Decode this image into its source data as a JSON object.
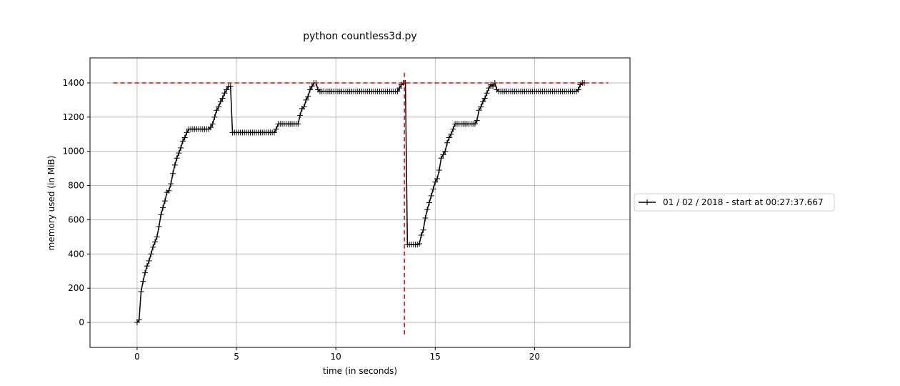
{
  "chart_data": {
    "type": "line",
    "title": "python countless3d.py",
    "xlabel": "time (in seconds)",
    "ylabel": "memory used (in MiB)",
    "xlim": [
      -2.37,
      24.8
    ],
    "ylim": [
      -146,
      1546
    ],
    "xticks": [
      0,
      5,
      10,
      15,
      20
    ],
    "yticks": [
      0,
      200,
      400,
      600,
      800,
      1000,
      1200,
      1400
    ],
    "grid": true,
    "legend": "right outside",
    "x": [
      0,
      0.1,
      0.2,
      0.3,
      0.4,
      0.5,
      0.6,
      0.7,
      0.8,
      0.9,
      1,
      1.1,
      1.2,
      1.3,
      1.4,
      1.5,
      1.6,
      1.7,
      1.8,
      1.9,
      2,
      2.1,
      2.2,
      2.3,
      2.4,
      2.5,
      2.6,
      2.7,
      2.8,
      2.9,
      3,
      3.1,
      3.2,
      3.3,
      3.4,
      3.5,
      3.6,
      3.7,
      3.8,
      3.9,
      4,
      4.1,
      4.2,
      4.3,
      4.4,
      4.5,
      4.6,
      4.7,
      4.8,
      4.9,
      5,
      5.1,
      5.2,
      5.3,
      5.4,
      5.5,
      5.6,
      5.7,
      5.8,
      5.9,
      6,
      6.1,
      6.2,
      6.3,
      6.4,
      6.5,
      6.6,
      6.7,
      6.8,
      6.9,
      7,
      7.1,
      7.2,
      7.3,
      7.4,
      7.5,
      7.6,
      7.7,
      7.8,
      7.9,
      8,
      8.1,
      8.2,
      8.3,
      8.4,
      8.5,
      8.6,
      8.7,
      8.8,
      8.9,
      9,
      9.1,
      9.2,
      9.3,
      9.4,
      9.5,
      9.6,
      9.7,
      9.8,
      9.9,
      10,
      10.1,
      10.2,
      10.3,
      10.4,
      10.5,
      10.6,
      10.7,
      10.8,
      10.9,
      11,
      11.1,
      11.2,
      11.3,
      11.4,
      11.5,
      11.6,
      11.7,
      11.8,
      11.9,
      12,
      12.1,
      12.2,
      12.3,
      12.4,
      12.5,
      12.6,
      12.7,
      12.8,
      12.9,
      13,
      13.1,
      13.2,
      13.3,
      13.4,
      13.5,
      13.6,
      13.7,
      13.8,
      13.9,
      14,
      14.1,
      14.2,
      14.3,
      14.4,
      14.5,
      14.6,
      14.7,
      14.8,
      14.9,
      15,
      15.1,
      15.2,
      15.3,
      15.4,
      15.5,
      15.6,
      15.7,
      15.8,
      15.9,
      16,
      16.1,
      16.2,
      16.3,
      16.4,
      16.5,
      16.6,
      16.7,
      16.8,
      16.9,
      17,
      17.1,
      17.2,
      17.3,
      17.4,
      17.5,
      17.6,
      17.7,
      17.8,
      17.9,
      18,
      18.1,
      18.2,
      18.3,
      18.4,
      18.5,
      18.6,
      18.7,
      18.8,
      18.9,
      19,
      19.1,
      19.2,
      19.3,
      19.4,
      19.5,
      19.6,
      19.7,
      19.8,
      19.9,
      20,
      20.1,
      20.2,
      20.3,
      20.4,
      20.5,
      20.6,
      20.7,
      20.8,
      20.9,
      21,
      21.1,
      21.2,
      21.3,
      21.4,
      21.5,
      21.6,
      21.7,
      21.8,
      21.9,
      22,
      22.1,
      22.2,
      22.3,
      22.4,
      22.5
    ],
    "series": [
      {
        "name": "01 / 02 / 2018 - start at 00:27:37.667",
        "color": "#000000",
        "values": [
          0,
          15,
          180,
          240,
          290,
          330,
          360,
          400,
          440,
          470,
          500,
          560,
          630,
          670,
          710,
          760,
          770,
          810,
          870,
          920,
          960,
          990,
          1020,
          1060,
          1080,
          1110,
          1130,
          1130,
          1130,
          1130,
          1130,
          1130,
          1130,
          1130,
          1130,
          1130,
          1130,
          1140,
          1160,
          1200,
          1240,
          1260,
          1290,
          1310,
          1340,
          1360,
          1380,
          1380,
          1110,
          1110,
          1110,
          1110,
          1110,
          1110,
          1110,
          1110,
          1110,
          1110,
          1110,
          1110,
          1110,
          1110,
          1110,
          1110,
          1110,
          1110,
          1110,
          1110,
          1110,
          1110,
          1130,
          1160,
          1160,
          1160,
          1160,
          1160,
          1160,
          1160,
          1160,
          1160,
          1160,
          1160,
          1210,
          1250,
          1260,
          1300,
          1320,
          1360,
          1380,
          1400,
          1400,
          1360,
          1350,
          1350,
          1350,
          1350,
          1350,
          1350,
          1350,
          1350,
          1350,
          1350,
          1350,
          1350,
          1350,
          1350,
          1350,
          1350,
          1350,
          1350,
          1350,
          1350,
          1350,
          1350,
          1350,
          1350,
          1350,
          1350,
          1350,
          1350,
          1350,
          1350,
          1350,
          1350,
          1350,
          1350,
          1350,
          1350,
          1350,
          1350,
          1350,
          1350,
          1370,
          1390,
          1400,
          1400,
          455,
          455,
          455,
          455,
          455,
          455,
          460,
          510,
          540,
          610,
          660,
          700,
          740,
          780,
          820,
          840,
          890,
          960,
          980,
          1000,
          1050,
          1080,
          1100,
          1130,
          1160,
          1160,
          1160,
          1160,
          1160,
          1160,
          1160,
          1160,
          1160,
          1160,
          1160,
          1180,
          1240,
          1260,
          1290,
          1310,
          1340,
          1370,
          1390,
          1380,
          1400,
          1360,
          1350,
          1350,
          1350,
          1350,
          1350,
          1350,
          1350,
          1350,
          1350,
          1350,
          1350,
          1350,
          1350,
          1350,
          1350,
          1350,
          1350,
          1350,
          1350,
          1350,
          1350,
          1350,
          1350,
          1350,
          1350,
          1350,
          1350,
          1350,
          1350,
          1350,
          1350,
          1350,
          1350,
          1350,
          1350,
          1350,
          1350,
          1350,
          1350,
          1350,
          1360,
          1390,
          1400,
          1400
        ]
      }
    ],
    "reference_lines": [
      {
        "orientation": "horizontal",
        "value": 1400,
        "from": -1.2,
        "to": 23.7,
        "color": "#ff0000"
      },
      {
        "orientation": "vertical",
        "value": 13.45,
        "from": -70,
        "to": 1470,
        "color": "#ff0000"
      }
    ]
  }
}
